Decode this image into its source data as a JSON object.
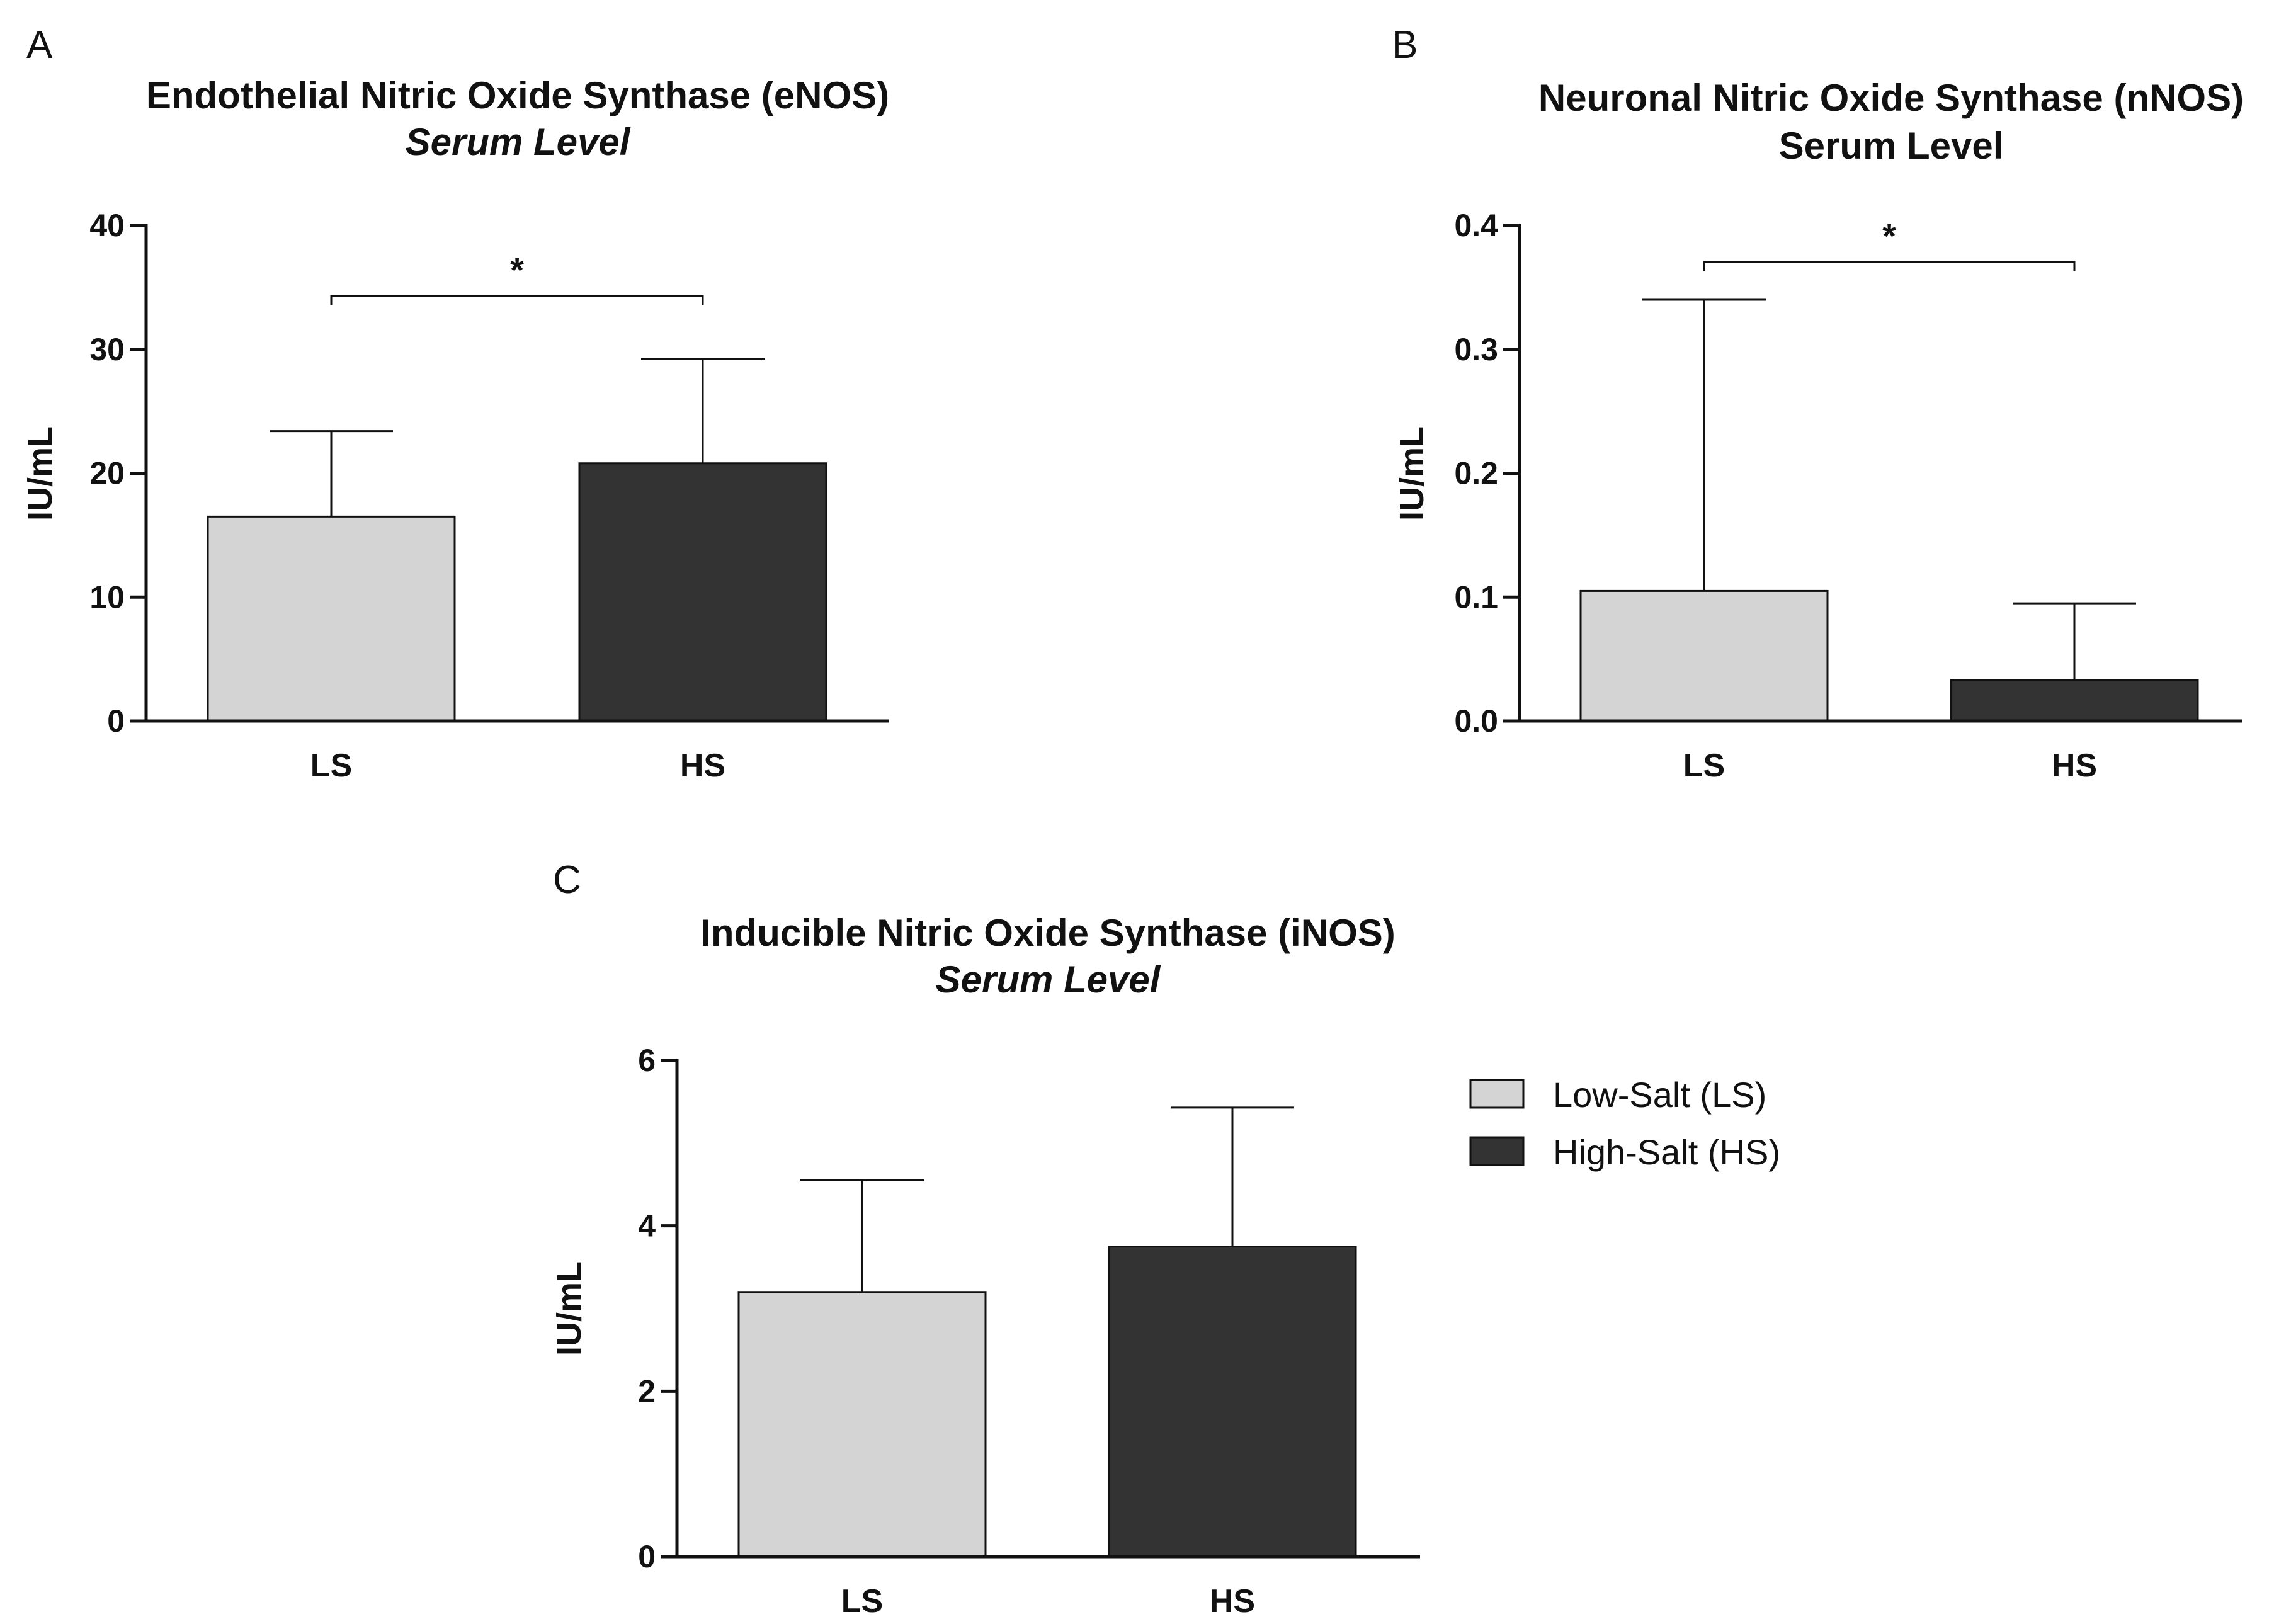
{
  "chart_data": [
    {
      "panel": "A",
      "type": "bar",
      "title": "Endothelial Nitric Oxide Synthase (eNOS)",
      "subtitle": "Serum Level",
      "subtitle_italic": true,
      "ylabel": "IU/mL",
      "categories": [
        "LS",
        "HS"
      ],
      "values": [
        16.5,
        20.8
      ],
      "errors": [
        6.9,
        8.4
      ],
      "ylim": [
        0,
        40
      ],
      "yticks": [
        0,
        10,
        20,
        30,
        40
      ],
      "ytick_labels": [
        "0",
        "10",
        "20",
        "30",
        "40"
      ],
      "significance": {
        "between": [
          "LS",
          "HS"
        ],
        "label": "*"
      }
    },
    {
      "panel": "B",
      "type": "bar",
      "title": "Neuronal Nitric Oxide Synthase (nNOS)",
      "subtitle": "Serum Level",
      "subtitle_italic": false,
      "ylabel": "IU/mL",
      "categories": [
        "LS",
        "HS"
      ],
      "values": [
        0.105,
        0.033
      ],
      "errors": [
        0.235,
        0.062
      ],
      "ylim": [
        0,
        0.4
      ],
      "yticks": [
        0,
        0.1,
        0.2,
        0.3,
        0.4
      ],
      "ytick_labels": [
        "0.0",
        "0.1",
        "0.2",
        "0.3",
        "0.4"
      ],
      "significance": {
        "between": [
          "LS",
          "HS"
        ],
        "label": "*"
      }
    },
    {
      "panel": "C",
      "type": "bar",
      "title": "Inducible Nitric Oxide Synthase (iNOS)",
      "subtitle": "Serum Level",
      "subtitle_italic": true,
      "ylabel": "IU/mL",
      "categories": [
        "LS",
        "HS"
      ],
      "values": [
        3.2,
        3.75
      ],
      "errors": [
        1.35,
        1.68
      ],
      "ylim": [
        0,
        6
      ],
      "yticks": [
        0,
        2,
        4,
        6
      ],
      "ytick_labels": [
        "0",
        "2",
        "4",
        "6"
      ],
      "significance": null
    }
  ],
  "legend": {
    "placement": "right of panel C",
    "items": [
      {
        "label": "Low-Salt (LS)",
        "color": "#d4d4d4"
      },
      {
        "label": "High-Salt (HS)",
        "color": "#333333"
      }
    ]
  },
  "colors": {
    "LS": "#d4d4d4",
    "HS": "#333333",
    "axis": "#111111"
  }
}
